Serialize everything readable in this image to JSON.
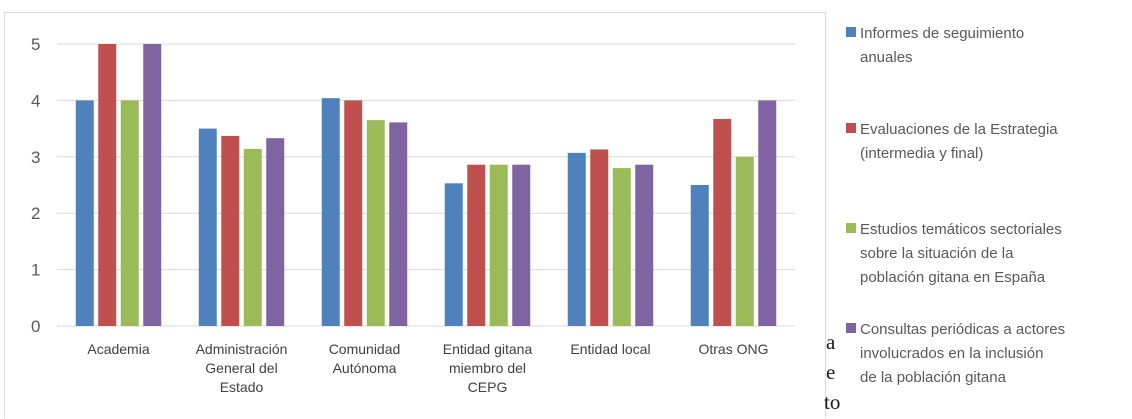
{
  "chart_data": {
    "type": "bar",
    "categories": [
      "Academia",
      "Administración\nGeneral del\nEstado",
      "Comunidad\nAutónoma",
      "Entidad gitana\nmiembro del\nCEPG",
      "Entidad local",
      "Otras ONG"
    ],
    "series": [
      {
        "name": "Informes de seguimiento anuales",
        "values": [
          4.0,
          3.5,
          4.04,
          2.53,
          3.07,
          2.5
        ]
      },
      {
        "name": "Evaluaciones de la Estrategia (intermedia y final)",
        "values": [
          5.0,
          3.37,
          4.0,
          2.86,
          3.13,
          3.67
        ]
      },
      {
        "name": "Estudios temáticos sectoriales sobre la situación de la población gitana en España",
        "values": [
          4.0,
          3.14,
          3.65,
          2.86,
          2.8,
          3.0
        ]
      },
      {
        "name": "Consultas periódicas a actores involucrados en la inclusión de la población gitana",
        "values": [
          5.0,
          3.33,
          3.61,
          2.86,
          2.86,
          4.0
        ]
      }
    ],
    "colors": [
      "#4f81bd",
      "#c0504d",
      "#9bbb59",
      "#8064a2"
    ],
    "ylim": [
      0,
      5
    ],
    "yticks": [
      0,
      1,
      2,
      3,
      4,
      5
    ],
    "grid": true,
    "legend_position": "right",
    "title": "",
    "xlabel": "",
    "ylabel": ""
  },
  "legend": {
    "items": [
      {
        "lines": [
          "Informes de seguimiento",
          "anuales"
        ],
        "color": "#4f81bd"
      },
      {
        "lines": [
          "Evaluaciones de la Estrategia",
          "(intermedia y final)"
        ],
        "color": "#c0504d"
      },
      {
        "lines": [
          "Estudios temáticos sectoriales",
          "sobre la situación de la",
          "población gitana en España"
        ],
        "color": "#9bbb59"
      },
      {
        "lines": [
          "Consultas periódicas a actores",
          "involucrados en la inclusión",
          "de la población gitana"
        ],
        "color": "#8064a2"
      }
    ]
  },
  "background_text": [
    "a",
    "e",
    "to"
  ]
}
